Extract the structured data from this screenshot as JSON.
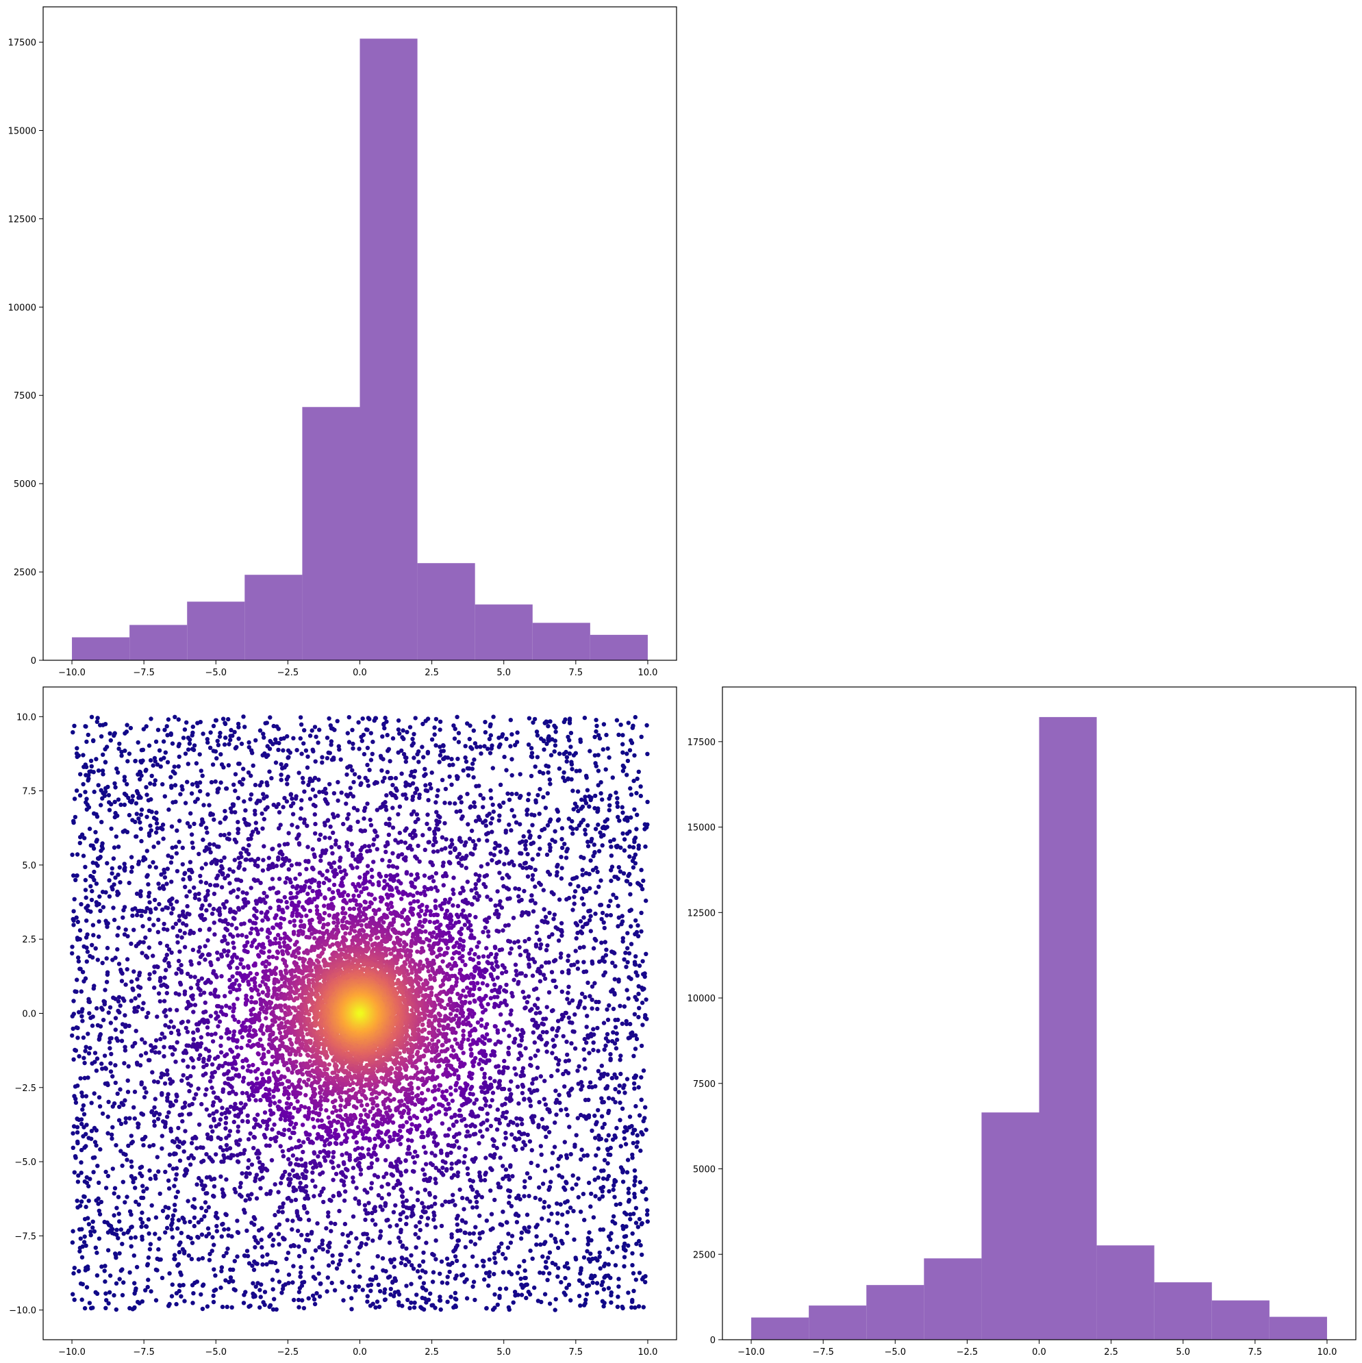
{
  "chart_data": [
    {
      "type": "bar",
      "panel": "top-left",
      "histogram": true,
      "bin_edges": [
        -10,
        -8,
        -6,
        -4,
        -2,
        0,
        2,
        4,
        6,
        8,
        10
      ],
      "values": [
        650,
        1000,
        1660,
        2420,
        7170,
        17600,
        2750,
        1580,
        1060,
        720
      ],
      "color": "#9467bd",
      "xlim": [
        -11,
        11
      ],
      "ylim": [
        0,
        18500
      ],
      "xticks": [
        -10,
        -7.5,
        -5,
        -2.5,
        0,
        2.5,
        5,
        7.5,
        10
      ],
      "xtick_labels": [
        "−10.0",
        "−7.5",
        "−5.0",
        "−2.5",
        "0.0",
        "2.5",
        "5.0",
        "7.5",
        "10.0"
      ],
      "yticks": [
        0,
        2500,
        5000,
        7500,
        10000,
        12500,
        15000,
        17500
      ],
      "ytick_labels": [
        "0",
        "2500",
        "5000",
        "7500",
        "10000",
        "12500",
        "15000",
        "17500"
      ]
    },
    {
      "type": "scatter",
      "panel": "bottom-left",
      "description_points": "approx. 10000 points uniformly scattered on [-10,10] x [-10,10], denser toward origin, colored by radial distance (plasma colormap: yellow near origin, dark purple far)",
      "x_range": [
        -10,
        10
      ],
      "y_range": [
        -10,
        10
      ],
      "colormap": [
        "#0d0887",
        "#6a00a8",
        "#b12a90",
        "#e16462",
        "#fca636",
        "#f0f921"
      ],
      "xlim": [
        -11,
        11
      ],
      "ylim": [
        -11,
        11
      ],
      "xticks": [
        -10,
        -7.5,
        -5,
        -2.5,
        0,
        2.5,
        5,
        7.5,
        10
      ],
      "xtick_labels": [
        "−10.0",
        "−7.5",
        "−5.0",
        "−2.5",
        "0.0",
        "2.5",
        "5.0",
        "7.5",
        "10.0"
      ],
      "yticks": [
        -10,
        -7.5,
        -5,
        -2.5,
        0,
        2.5,
        5,
        7.5,
        10
      ],
      "ytick_labels": [
        "−10.0",
        "−7.5",
        "−5.0",
        "−2.5",
        "0.0",
        "2.5",
        "5.0",
        "7.5",
        "10.0"
      ]
    },
    {
      "type": "bar",
      "panel": "bottom-right",
      "histogram": true,
      "bin_edges": [
        -10,
        -8,
        -6,
        -4,
        -2,
        0,
        2,
        4,
        6,
        8,
        10
      ],
      "values": [
        650,
        1000,
        1600,
        2380,
        6650,
        18220,
        2760,
        1680,
        1150,
        670
      ],
      "color": "#9467bd",
      "xlim": [
        -11,
        11
      ],
      "ylim": [
        0,
        19100
      ],
      "xticks": [
        -10,
        -7.5,
        -5,
        -2.5,
        0,
        2.5,
        5,
        7.5,
        10
      ],
      "xtick_labels": [
        "−10.0",
        "−7.5",
        "−5.0",
        "−2.5",
        "0.0",
        "2.5",
        "5.0",
        "7.5",
        "10.0"
      ],
      "yticks": [
        0,
        2500,
        5000,
        7500,
        10000,
        12500,
        15000,
        17500
      ],
      "ytick_labels": [
        "0",
        "2500",
        "5000",
        "7500",
        "10000",
        "12500",
        "15000",
        "17500"
      ]
    }
  ]
}
